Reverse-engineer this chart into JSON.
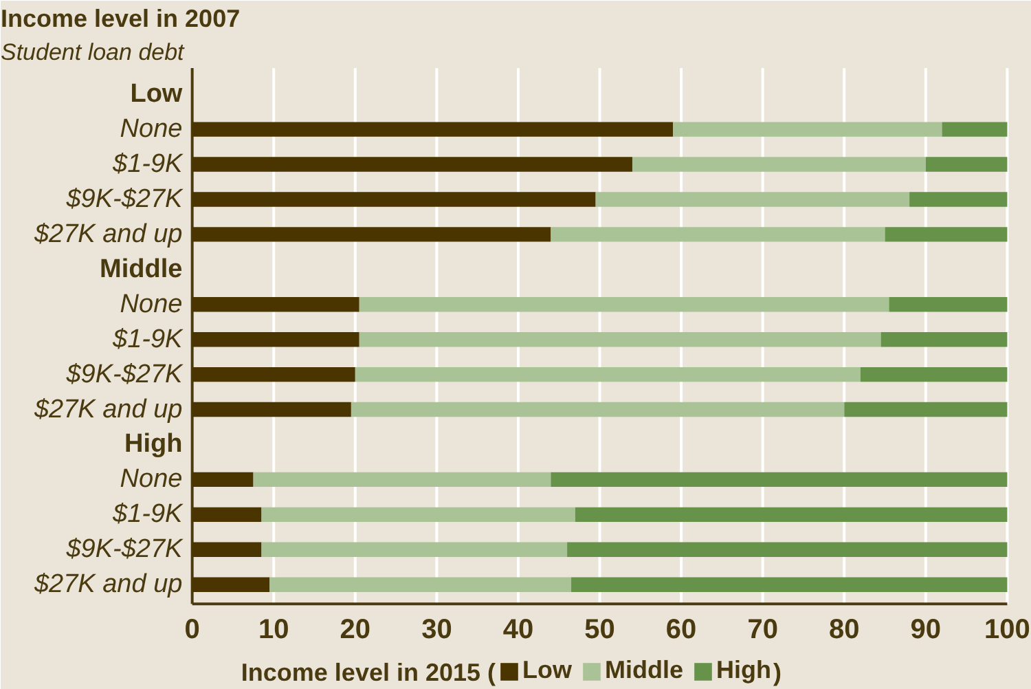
{
  "chart_data": {
    "type": "bar",
    "orientation": "horizontal",
    "stacked": true,
    "title": "Income level in 2007",
    "subtitle": "Student loan debt",
    "xlabel": "Income level in 2015 (",
    "annotations": [
      ")"
    ],
    "categories": [
      "Low",
      "None",
      "$1-9K",
      "$9K-$27K",
      "$27K and up",
      "Middle",
      "None",
      "$1-9K",
      "$9K-$27K",
      "$27K and up",
      "High",
      "None",
      "$1-9K",
      "$9K-$27K",
      "$27K and up"
    ],
    "series": [
      {
        "name": "Low",
        "color": "#4a3500",
        "values": [
          null,
          59,
          54,
          49.5,
          44,
          null,
          20.5,
          20.5,
          20,
          19.5,
          null,
          7.5,
          8.5,
          8.5,
          9.5
        ]
      },
      {
        "name": "Middle",
        "color": "#a9c296",
        "values": [
          null,
          33,
          36,
          38.5,
          41,
          null,
          65,
          64,
          62,
          60.5,
          null,
          36.5,
          38.5,
          37.5,
          37
        ]
      },
      {
        "name": "High",
        "color": "#66924a",
        "values": [
          null,
          8,
          10,
          12,
          15,
          null,
          14.5,
          15.5,
          18,
          20,
          null,
          56,
          53,
          54,
          53.5
        ]
      }
    ],
    "xlim": [
      0,
      100
    ],
    "xticks": [
      0,
      10,
      20,
      30,
      40,
      50,
      60,
      70,
      80,
      90,
      100
    ],
    "grid": "x",
    "legend": "bottom"
  }
}
